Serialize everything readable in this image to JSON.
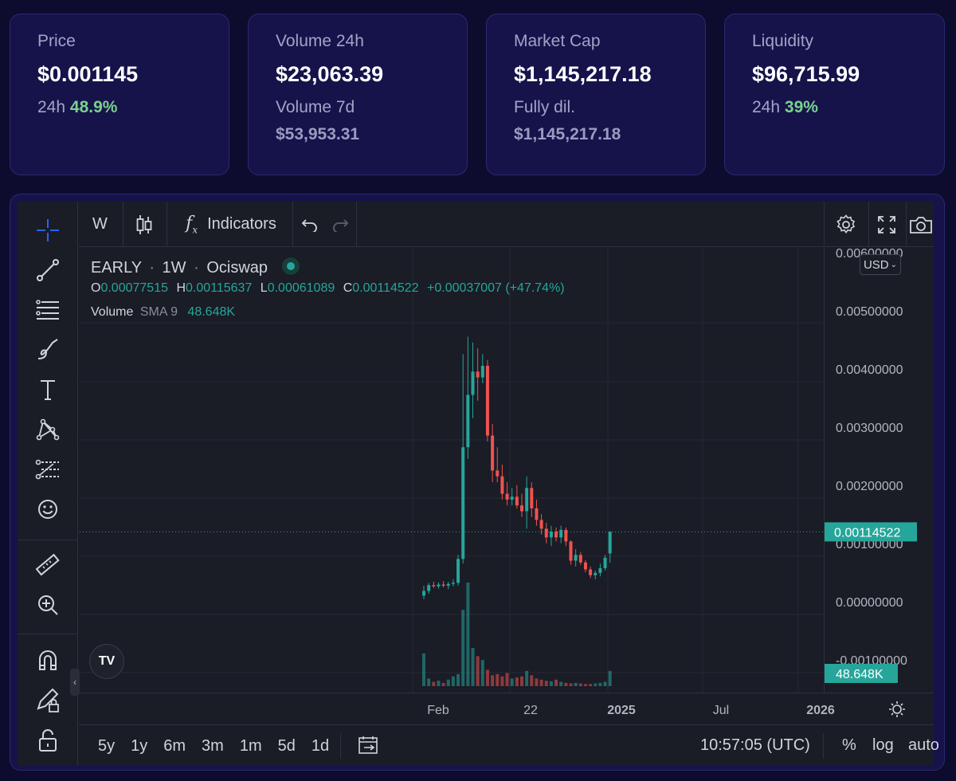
{
  "stats": {
    "price": {
      "label": "Price",
      "value": "$0.001145",
      "sub_label": "24h",
      "sub_value": "48.9%"
    },
    "volume": {
      "label": "Volume 24h",
      "value": "$23,063.39",
      "sub_label": "Volume 7d",
      "sub_value": "$53,953.31"
    },
    "market_cap": {
      "label": "Market Cap",
      "value": "$1,145,217.18",
      "sub_label": "Fully dil.",
      "sub_value": "$1,145,217.18"
    },
    "liquidity": {
      "label": "Liquidity",
      "value": "$96,715.99",
      "sub_label": "24h",
      "sub_value": "39%"
    }
  },
  "toolbar": {
    "interval": "W",
    "indicators_label": "Indicators"
  },
  "legend": {
    "symbol": "EARLY",
    "interval": "1W",
    "exchange": "Ociswap",
    "separator": "·",
    "o_label": "O",
    "o_value": "0.00077515",
    "h_label": "H",
    "h_value": "0.00115637",
    "l_label": "L",
    "l_value": "0.00061089",
    "c_label": "C",
    "c_value": "0.00114522",
    "change": "+0.00037007 (+47.74%)",
    "volume_label": "Volume",
    "sma_label": "SMA 9",
    "volume_value": "48.648K"
  },
  "price_axis": {
    "currency": "USD",
    "ticks": [
      "0.00600000",
      "0.00500000",
      "0.00400000",
      "0.00300000",
      "0.00200000",
      "0.00100000",
      "0.00000000",
      "-0.00100000"
    ],
    "last_price": "0.00114522",
    "volume_badge": "48.648K"
  },
  "time_axis": {
    "ticks": [
      "Feb",
      "22",
      "2025",
      "Jul",
      "2026"
    ]
  },
  "bottom_bar": {
    "ranges": [
      "5y",
      "1y",
      "6m",
      "3m",
      "1m",
      "5d",
      "1d"
    ],
    "clock": "10:57:05 (UTC)",
    "percent_label": "%",
    "log_label": "log",
    "auto_label": "auto"
  },
  "colors": {
    "up": "#26a69a",
    "down": "#ef5350",
    "positive_text": "#7ad18d"
  },
  "chart_data": {
    "type": "candlestick",
    "symbol": "EARLY",
    "interval": "1W",
    "ylim": [
      -0.0013,
      0.006
    ],
    "candles": [
      {
        "o": 5e-05,
        "h": 0.00022,
        "l": -1e-05,
        "c": 0.00013
      },
      {
        "o": 0.00013,
        "h": 0.00027,
        "l": 8e-05,
        "c": 0.00023
      },
      {
        "o": 0.00023,
        "h": 0.00029,
        "l": 0.00018,
        "c": 0.00021
      },
      {
        "o": 0.00021,
        "h": 0.00028,
        "l": 0.00017,
        "c": 0.00024
      },
      {
        "o": 0.00024,
        "h": 0.0003,
        "l": 0.00019,
        "c": 0.00022
      },
      {
        "o": 0.00022,
        "h": 0.00029,
        "l": 0.00016,
        "c": 0.00025
      },
      {
        "o": 0.00025,
        "h": 0.00033,
        "l": 0.00021,
        "c": 0.00027
      },
      {
        "o": 0.00027,
        "h": 0.00075,
        "l": 0.00022,
        "c": 0.00068
      },
      {
        "o": 0.00068,
        "h": 0.0042,
        "l": 0.0006,
        "c": 0.0026
      },
      {
        "o": 0.0026,
        "h": 0.0045,
        "l": 0.0024,
        "c": 0.0035
      },
      {
        "o": 0.0035,
        "h": 0.0044,
        "l": 0.0031,
        "c": 0.0039
      },
      {
        "o": 0.0039,
        "h": 0.0043,
        "l": 0.0034,
        "c": 0.0038
      },
      {
        "o": 0.0038,
        "h": 0.0042,
        "l": 0.0037,
        "c": 0.004
      },
      {
        "o": 0.004,
        "h": 0.0041,
        "l": 0.0027,
        "c": 0.0028
      },
      {
        "o": 0.0028,
        "h": 0.003,
        "l": 0.002,
        "c": 0.0022
      },
      {
        "o": 0.0022,
        "h": 0.0026,
        "l": 0.002,
        "c": 0.0021
      },
      {
        "o": 0.0021,
        "h": 0.0023,
        "l": 0.0017,
        "c": 0.0018
      },
      {
        "o": 0.0018,
        "h": 0.002,
        "l": 0.0016,
        "c": 0.0017
      },
      {
        "o": 0.0017,
        "h": 0.0019,
        "l": 0.0016,
        "c": 0.00175
      },
      {
        "o": 0.00175,
        "h": 0.00195,
        "l": 0.00155,
        "c": 0.0016
      },
      {
        "o": 0.0016,
        "h": 0.0018,
        "l": 0.0014,
        "c": 0.0015
      },
      {
        "o": 0.0015,
        "h": 0.0021,
        "l": 0.0012,
        "c": 0.0019
      },
      {
        "o": 0.0019,
        "h": 0.002,
        "l": 0.0014,
        "c": 0.00155
      },
      {
        "o": 0.00155,
        "h": 0.0017,
        "l": 0.00125,
        "c": 0.00135
      },
      {
        "o": 0.00135,
        "h": 0.00145,
        "l": 0.0011,
        "c": 0.0012
      },
      {
        "o": 0.0012,
        "h": 0.0013,
        "l": 0.00095,
        "c": 0.00105
      },
      {
        "o": 0.00105,
        "h": 0.00125,
        "l": 0.0009,
        "c": 0.00115
      },
      {
        "o": 0.00115,
        "h": 0.00122,
        "l": 0.00098,
        "c": 0.00105
      },
      {
        "o": 0.00105,
        "h": 0.00125,
        "l": 0.00095,
        "c": 0.00118
      },
      {
        "o": 0.00118,
        "h": 0.00122,
        "l": 0.0009,
        "c": 0.00098
      },
      {
        "o": 0.00098,
        "h": 0.001,
        "l": 0.00058,
        "c": 0.00065
      },
      {
        "o": 0.00065,
        "h": 0.00085,
        "l": 0.00055,
        "c": 0.00075
      },
      {
        "o": 0.00075,
        "h": 0.0008,
        "l": 0.00058,
        "c": 0.00062
      },
      {
        "o": 0.00062,
        "h": 0.00066,
        "l": 0.00045,
        "c": 0.0005
      },
      {
        "o": 0.0005,
        "h": 0.00055,
        "l": 0.00035,
        "c": 0.0004
      },
      {
        "o": 0.0004,
        "h": 0.00048,
        "l": 0.00033,
        "c": 0.00044
      },
      {
        "o": 0.00044,
        "h": 0.0006,
        "l": 0.00038,
        "c": 0.00052
      },
      {
        "o": 0.00052,
        "h": 0.00075,
        "l": 0.00048,
        "c": 0.0007
      },
      {
        "o": 0.00077515,
        "h": 0.00115637,
        "l": 0.00061089,
        "c": 0.00114522
      }
    ],
    "volume": [
      60,
      14,
      8,
      10,
      6,
      12,
      18,
      22,
      140,
      190,
      70,
      55,
      48,
      30,
      20,
      22,
      18,
      24,
      14,
      16,
      18,
      28,
      20,
      14,
      12,
      10,
      9,
      12,
      8,
      6,
      5,
      6,
      5,
      4,
      4,
      5,
      6,
      8,
      28
    ]
  }
}
